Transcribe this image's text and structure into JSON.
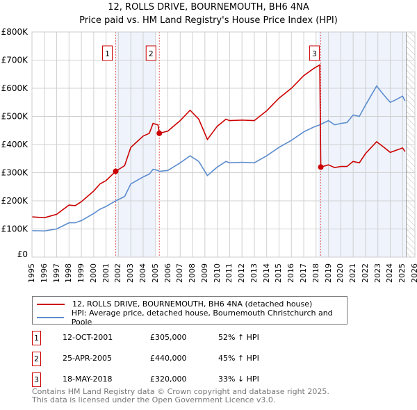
{
  "title": "12, ROLLS DRIVE, BOURNEMOUTH, BH6 4NA",
  "subtitle": "Price paid vs. HM Land Registry's House Price Index (HPI)",
  "chart_data": {
    "type": "line",
    "title": "12, ROLLS DRIVE, BOURNEMOUTH, BH6 4NA — Price paid vs. HM Land Registry's House Price Index (HPI)",
    "xlim": [
      1995,
      2026
    ],
    "ylim": [
      0,
      800000
    ],
    "x_ticks": [
      "1995",
      "1996",
      "1997",
      "1998",
      "1999",
      "2000",
      "2001",
      "2002",
      "2003",
      "2004",
      "2005",
      "2006",
      "2007",
      "2008",
      "2009",
      "2010",
      "2011",
      "2012",
      "2013",
      "2014",
      "2015",
      "2016",
      "2017",
      "2018",
      "2019",
      "2020",
      "2021",
      "2022",
      "2023",
      "2024",
      "2025",
      "2026"
    ],
    "y_ticks": [
      {
        "v": 0,
        "label": "£0"
      },
      {
        "v": 100000,
        "label": "£100K"
      },
      {
        "v": 200000,
        "label": "£200K"
      },
      {
        "v": 300000,
        "label": "£300K"
      },
      {
        "v": 400000,
        "label": "£400K"
      },
      {
        "v": 500000,
        "label": "£500K"
      },
      {
        "v": 600000,
        "label": "£600K"
      },
      {
        "v": 700000,
        "label": "£700K"
      },
      {
        "v": 800000,
        "label": "£800K"
      }
    ],
    "grid": true,
    "shaded_periods": [
      [
        2001.78,
        2005.0
      ],
      [
        2018.2,
        2025.3
      ]
    ],
    "forecast_hatch_from": 2025.3,
    "series": [
      {
        "name": "12, ROLLS DRIVE, BOURNEMOUTH, BH6 4NA (detached house)",
        "color": "#cc0000",
        "x": [
          1995,
          1996,
          1997,
          1998,
          1998.5,
          1999,
          2000,
          2000.5,
          2001,
          2001.78,
          2002.5,
          2003,
          2004,
          2004.5,
          2004.8,
          2005.2,
          2005.31,
          2006,
          2007,
          2007.8,
          2008.5,
          2009.2,
          2010,
          2010.7,
          2011,
          2012,
          2013,
          2014,
          2015,
          2016,
          2017,
          2017.8,
          2018.3,
          2018.38,
          2019,
          2019.5,
          2020,
          2020.5,
          2021,
          2021.5,
          2022,
          2022.9,
          2023.5,
          2024,
          2024.5,
          2025,
          2025.2
        ],
        "y": [
          143000,
          140000,
          152000,
          185000,
          183000,
          197000,
          235000,
          260000,
          272000,
          305000,
          325000,
          390000,
          430000,
          440000,
          475000,
          470000,
          440000,
          448000,
          485000,
          522000,
          490000,
          418000,
          465000,
          490000,
          485000,
          487000,
          485000,
          520000,
          565000,
          600000,
          645000,
          670000,
          683000,
          320000,
          328000,
          318000,
          322000,
          322000,
          340000,
          335000,
          368000,
          410000,
          390000,
          372000,
          380000,
          388000,
          375000
        ]
      },
      {
        "name": "HPI: Average price, detached house, Bournemouth Christchurch and Poole",
        "color": "#5b8ccf",
        "x": [
          1995,
          1996,
          1997,
          1998,
          1998.5,
          1999,
          2000,
          2000.5,
          2001,
          2001.78,
          2002.5,
          2003,
          2004,
          2004.5,
          2004.8,
          2005.2,
          2005.31,
          2006,
          2007,
          2007.8,
          2008.5,
          2009.2,
          2010,
          2010.7,
          2011,
          2012,
          2013,
          2014,
          2015,
          2016,
          2017,
          2017.8,
          2018.3,
          2018.38,
          2019,
          2019.5,
          2020,
          2020.5,
          2021,
          2021.5,
          2022,
          2022.9,
          2023.5,
          2024,
          2024.5,
          2025,
          2025.2
        ],
        "y": [
          94000,
          93000,
          100000,
          122000,
          122000,
          130000,
          155000,
          170000,
          180000,
          200000,
          215000,
          260000,
          285000,
          295000,
          312000,
          308000,
          305000,
          308000,
          335000,
          360000,
          340000,
          290000,
          320000,
          340000,
          335000,
          337000,
          335000,
          360000,
          390000,
          415000,
          445000,
          462000,
          470000,
          472000,
          485000,
          470000,
          475000,
          478000,
          505000,
          500000,
          540000,
          608000,
          575000,
          550000,
          560000,
          572000,
          555000
        ]
      }
    ],
    "sales": [
      {
        "label": "1",
        "x": 2001.78,
        "y": 305000
      },
      {
        "label": "2",
        "x": 2005.31,
        "y": 440000
      },
      {
        "label": "3",
        "x": 2018.38,
        "y": 320000
      }
    ]
  },
  "legend": {
    "red": "12, ROLLS DRIVE, BOURNEMOUTH, BH6 4NA (detached house)",
    "blue": "HPI: Average price, detached house, Bournemouth Christchurch and Poole"
  },
  "transactions": [
    {
      "num": "1",
      "date": "12-OCT-2001",
      "price": "£305,000",
      "hpi": "52% ↑ HPI"
    },
    {
      "num": "2",
      "date": "25-APR-2005",
      "price": "£440,000",
      "hpi": "45% ↑ HPI"
    },
    {
      "num": "3",
      "date": "18-MAY-2018",
      "price": "£320,000",
      "hpi": "33% ↓ HPI"
    }
  ],
  "footer": {
    "line1": "Contains HM Land Registry data © Crown copyright and database right 2025.",
    "line2": "This data is licensed under the Open Government Licence v3.0."
  }
}
